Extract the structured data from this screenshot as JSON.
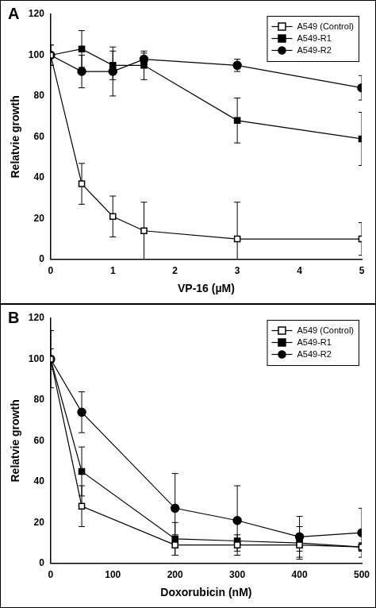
{
  "chart_data": [
    {
      "type": "line",
      "title": "A",
      "x_label": "VP-16 (µM)",
      "y_label": "Relatvie growth",
      "x": [
        0,
        0.5,
        1,
        1.5,
        3,
        5
      ],
      "xlim": [
        0,
        5
      ],
      "xticks": [
        0,
        1,
        2,
        3,
        4,
        5
      ],
      "ylim": [
        0,
        120
      ],
      "yticks": [
        0,
        20,
        40,
        60,
        80,
        100,
        120
      ],
      "grid": false,
      "legend": "top-right",
      "series": [
        {
          "name": "A549 (Control)",
          "color": "#000000",
          "marker": "square-open",
          "values": [
            100,
            37,
            21,
            14,
            10,
            10
          ],
          "errors": [
            5,
            10,
            10,
            14,
            18,
            8
          ]
        },
        {
          "name": "A549-R1",
          "color": "#000000",
          "marker": "square",
          "values": [
            100,
            103,
            95,
            95,
            68,
            59
          ],
          "errors": [
            5,
            9,
            7,
            7,
            11,
            13
          ]
        },
        {
          "name": "A549-R2",
          "color": "#000000",
          "marker": "circle",
          "values": [
            100,
            92,
            92,
            98,
            95,
            84
          ],
          "errors": [
            5,
            8,
            12,
            3,
            3,
            6
          ]
        }
      ]
    },
    {
      "type": "line",
      "title": "B",
      "x_label": "Doxorubicin (nM)",
      "y_label": "Relatvie growth",
      "x": [
        0,
        50,
        200,
        300,
        400,
        500
      ],
      "xlim": [
        0,
        500
      ],
      "xticks": [
        0,
        100,
        200,
        300,
        400,
        500
      ],
      "ylim": [
        0,
        120
      ],
      "yticks": [
        0,
        20,
        40,
        60,
        80,
        100,
        120
      ],
      "grid": false,
      "legend": "top-right",
      "series": [
        {
          "name": "A549 (Control)",
          "color": "#000000",
          "marker": "square-open",
          "values": [
            100,
            28,
            9,
            9,
            9,
            8
          ],
          "errors": [
            5,
            10,
            5,
            3,
            3,
            2
          ]
        },
        {
          "name": "A549-R1",
          "color": "#000000",
          "marker": "square",
          "values": [
            100,
            45,
            12,
            11,
            10,
            8
          ],
          "errors": [
            14,
            12,
            8,
            3,
            8,
            2
          ]
        },
        {
          "name": "A549-R2",
          "color": "#000000",
          "marker": "circle",
          "values": [
            100,
            74,
            27,
            21,
            13,
            15
          ],
          "errors": [
            14,
            10,
            17,
            17,
            10,
            12
          ]
        }
      ]
    }
  ]
}
